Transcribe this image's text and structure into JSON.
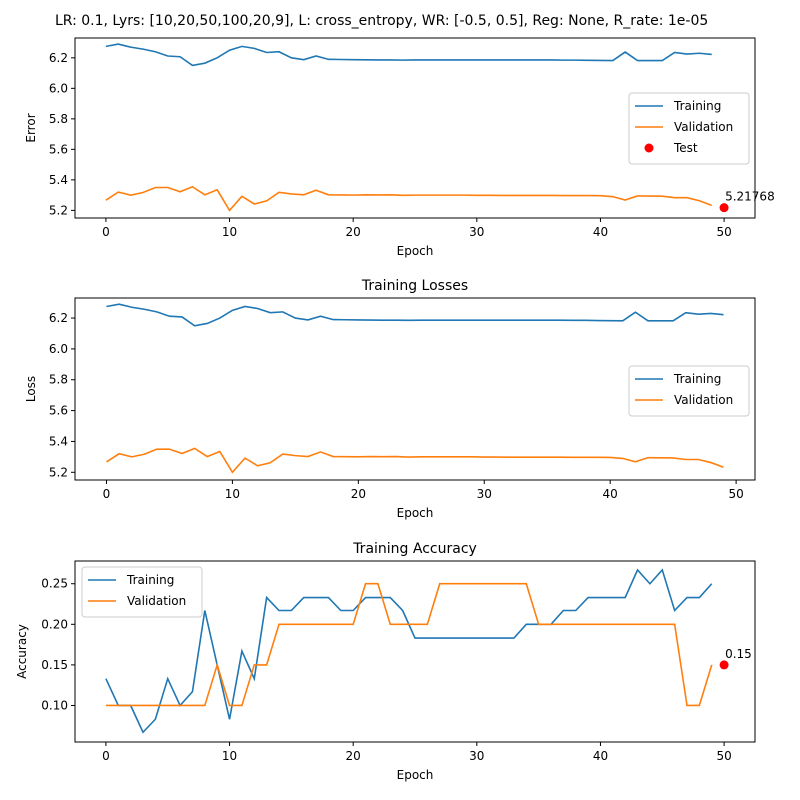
{
  "figure": {
    "background": "#ffffff"
  },
  "colors": {
    "training": "#1f77b4",
    "validation": "#ff7f0e",
    "test": "#ff0000"
  },
  "chart_data": [
    {
      "type": "line",
      "title": "LR: 0.1, Lyrs: [10,20,50,100,20,9], L: cross_entropy, WR: [-0.5, 0.5], Reg: None, R_rate: 1e-05",
      "xlabel": "Epoch",
      "ylabel": "Error",
      "xlim": [
        -2.5,
        52.5
      ],
      "ylim": [
        5.15,
        6.33
      ],
      "xticks": [
        0,
        10,
        20,
        30,
        40,
        50
      ],
      "yticks": [
        5.2,
        5.4,
        5.6,
        5.8,
        6.0,
        6.2
      ],
      "ytick_labels": [
        "5.2",
        "5.4",
        "5.6",
        "5.8",
        "6.0",
        "6.2"
      ],
      "legend": {
        "position": "center-right",
        "entries": [
          "Training",
          "Validation",
          "Test"
        ]
      },
      "series": [
        {
          "name": "Training",
          "color": "#1f77b4",
          "x_start": 0,
          "values": [
            6.275,
            6.29,
            6.27,
            6.257,
            6.24,
            6.212,
            6.207,
            6.15,
            6.165,
            6.2,
            6.25,
            6.275,
            6.262,
            6.235,
            6.24,
            6.2,
            6.188,
            6.212,
            6.19,
            6.189,
            6.188,
            6.187,
            6.186,
            6.186,
            6.185,
            6.186,
            6.186,
            6.186,
            6.186,
            6.186,
            6.186,
            6.186,
            6.186,
            6.186,
            6.186,
            6.186,
            6.186,
            6.185,
            6.185,
            6.184,
            6.183,
            6.182,
            6.238,
            6.182,
            6.182,
            6.182,
            6.235,
            6.225,
            6.23,
            6.222
          ]
        },
        {
          "name": "Validation",
          "color": "#ff7f0e",
          "x_start": 0,
          "values": [
            5.267,
            5.32,
            5.3,
            5.317,
            5.35,
            5.35,
            5.322,
            5.355,
            5.302,
            5.335,
            5.2,
            5.292,
            5.242,
            5.262,
            5.318,
            5.308,
            5.302,
            5.332,
            5.302,
            5.301,
            5.3,
            5.302,
            5.301,
            5.302,
            5.299,
            5.3,
            5.3,
            5.3,
            5.3,
            5.3,
            5.299,
            5.299,
            5.298,
            5.298,
            5.298,
            5.298,
            5.298,
            5.297,
            5.297,
            5.297,
            5.296,
            5.29,
            5.268,
            5.295,
            5.294,
            5.293,
            5.283,
            5.283,
            5.263,
            5.233
          ]
        }
      ],
      "points": [
        {
          "name": "Test",
          "x": 50,
          "y": 5.21768,
          "label": "5.21768",
          "color": "#ff0000"
        }
      ]
    },
    {
      "type": "line",
      "title": "Training Losses",
      "xlabel": "Epoch",
      "ylabel": "Loss",
      "xlim": [
        -2.5,
        51.5
      ],
      "ylim": [
        5.15,
        6.33
      ],
      "xticks": [
        0,
        10,
        20,
        30,
        40,
        50
      ],
      "yticks": [
        5.2,
        5.4,
        5.6,
        5.8,
        6.0,
        6.2
      ],
      "ytick_labels": [
        "5.2",
        "5.4",
        "5.6",
        "5.8",
        "6.0",
        "6.2"
      ],
      "legend": {
        "position": "center-right",
        "entries": [
          "Training",
          "Validation"
        ]
      },
      "series": [
        {
          "name": "Training",
          "color": "#1f77b4",
          "x_start": 0,
          "values": [
            6.275,
            6.29,
            6.27,
            6.257,
            6.24,
            6.212,
            6.207,
            6.15,
            6.165,
            6.2,
            6.25,
            6.275,
            6.262,
            6.235,
            6.24,
            6.2,
            6.188,
            6.212,
            6.19,
            6.189,
            6.188,
            6.187,
            6.186,
            6.186,
            6.185,
            6.186,
            6.186,
            6.186,
            6.186,
            6.186,
            6.186,
            6.186,
            6.186,
            6.186,
            6.186,
            6.186,
            6.186,
            6.185,
            6.185,
            6.184,
            6.183,
            6.182,
            6.238,
            6.182,
            6.182,
            6.182,
            6.235,
            6.225,
            6.23,
            6.222
          ]
        },
        {
          "name": "Validation",
          "color": "#ff7f0e",
          "x_start": 0,
          "values": [
            5.267,
            5.32,
            5.3,
            5.317,
            5.35,
            5.35,
            5.322,
            5.355,
            5.302,
            5.335,
            5.2,
            5.292,
            5.242,
            5.262,
            5.318,
            5.308,
            5.302,
            5.332,
            5.302,
            5.301,
            5.3,
            5.302,
            5.301,
            5.302,
            5.299,
            5.3,
            5.3,
            5.3,
            5.3,
            5.3,
            5.299,
            5.299,
            5.298,
            5.298,
            5.298,
            5.298,
            5.298,
            5.297,
            5.297,
            5.297,
            5.296,
            5.29,
            5.268,
            5.295,
            5.294,
            5.293,
            5.283,
            5.283,
            5.263,
            5.233
          ]
        }
      ],
      "points": []
    },
    {
      "type": "line",
      "title": "Training Accuracy",
      "xlabel": "Epoch",
      "ylabel": "Accuracy",
      "xlim": [
        -2.5,
        52.5
      ],
      "ylim": [
        0.055,
        0.278
      ],
      "xticks": [
        0,
        10,
        20,
        30,
        40,
        50
      ],
      "yticks": [
        0.1,
        0.15,
        0.2,
        0.25
      ],
      "ytick_labels": [
        "0.10",
        "0.15",
        "0.20",
        "0.25"
      ],
      "legend": {
        "position": "top-left",
        "entries": [
          "Training",
          "Validation"
        ]
      },
      "series": [
        {
          "name": "Training",
          "color": "#1f77b4",
          "x_start": 0,
          "values": [
            0.133,
            0.1,
            0.1,
            0.067,
            0.083,
            0.133,
            0.1,
            0.117,
            0.217,
            0.15,
            0.083,
            0.167,
            0.133,
            0.233,
            0.217,
            0.217,
            0.233,
            0.233,
            0.233,
            0.217,
            0.217,
            0.233,
            0.233,
            0.233,
            0.217,
            0.183,
            0.183,
            0.183,
            0.183,
            0.183,
            0.183,
            0.183,
            0.183,
            0.183,
            0.2,
            0.2,
            0.2,
            0.217,
            0.217,
            0.233,
            0.233,
            0.233,
            0.233,
            0.267,
            0.25,
            0.267,
            0.217,
            0.233,
            0.233,
            0.25
          ]
        },
        {
          "name": "Validation",
          "color": "#ff7f0e",
          "x_start": 0,
          "values": [
            0.1,
            0.1,
            0.1,
            0.1,
            0.1,
            0.1,
            0.1,
            0.1,
            0.1,
            0.15,
            0.1,
            0.1,
            0.15,
            0.15,
            0.2,
            0.2,
            0.2,
            0.2,
            0.2,
            0.2,
            0.2,
            0.25,
            0.25,
            0.2,
            0.2,
            0.2,
            0.2,
            0.25,
            0.25,
            0.25,
            0.25,
            0.25,
            0.25,
            0.25,
            0.25,
            0.2,
            0.2,
            0.2,
            0.2,
            0.2,
            0.2,
            0.2,
            0.2,
            0.2,
            0.2,
            0.2,
            0.2,
            0.1,
            0.1,
            0.15
          ]
        }
      ],
      "points": [
        {
          "name": "Test",
          "x": 50,
          "y": 0.15,
          "label": "0.15",
          "color": "#ff0000"
        }
      ]
    }
  ]
}
